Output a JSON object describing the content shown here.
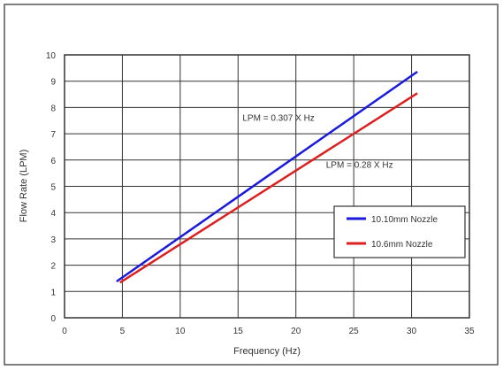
{
  "chart_data": {
    "type": "line",
    "xlabel": "Frequency (Hz)",
    "ylabel": "Flow Rate (LPM)",
    "xlim": [
      0,
      35
    ],
    "ylim": [
      0,
      10
    ],
    "xticks": [
      "0",
      "5",
      "10",
      "15",
      "20",
      "25",
      "30",
      "35"
    ],
    "yticks": [
      "0",
      "1",
      "2",
      "3",
      "4",
      "5",
      "6",
      "7",
      "8",
      "9",
      "10"
    ],
    "grid": true,
    "legend": "right",
    "series": [
      {
        "name": "10.10mm Nozzle",
        "color": "#1a1adc",
        "x": [
          4.5,
          30.5
        ],
        "y": [
          1.38,
          9.36
        ]
      },
      {
        "name": "10.6mm Nozzle",
        "color": "#dc2020",
        "x": [
          4.8,
          30.5
        ],
        "y": [
          1.34,
          8.54
        ]
      }
    ],
    "annotations": [
      {
        "text": "LPM = 0.307 X Hz",
        "x": 18.5,
        "y": 7.5
      },
      {
        "text": "LPM = 0.28 X Hz",
        "x": 25.5,
        "y": 5.7
      }
    ]
  }
}
